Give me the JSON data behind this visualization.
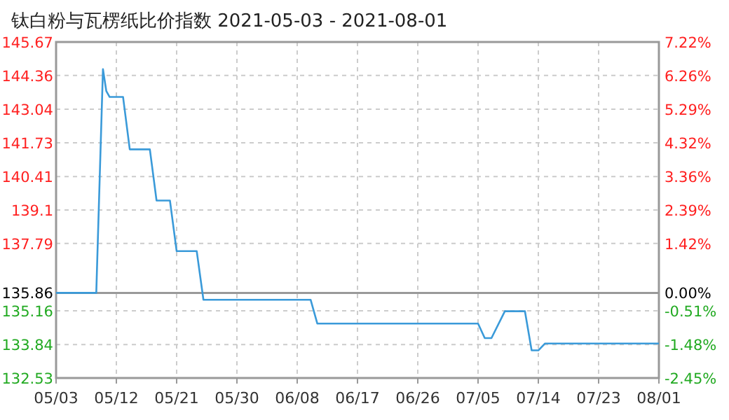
{
  "chart_data": {
    "type": "line",
    "title": "钛白粉与瓦楞纸比价指数 2021-05-03 - 2021-08-01",
    "x": [
      "2021-05-03",
      "2021-05-09",
      "2021-05-10",
      "2021-05-10T12:00",
      "2021-05-11",
      "2021-05-13",
      "2021-05-14",
      "2021-05-17",
      "2021-05-18",
      "2021-05-20",
      "2021-05-21",
      "2021-05-24",
      "2021-05-25",
      "2021-06-10",
      "2021-06-11",
      "2021-07-05",
      "2021-07-06",
      "2021-07-07",
      "2021-07-09",
      "2021-07-12",
      "2021-07-13",
      "2021-07-14",
      "2021-07-15",
      "2021-08-01"
    ],
    "series": [
      {
        "color": "#3a9ad9",
        "values": [
          135.86,
          135.86,
          144.61,
          143.75,
          143.52,
          143.52,
          141.47,
          141.47,
          139.47,
          139.47,
          137.49,
          137.49,
          135.59,
          135.59,
          134.66,
          134.66,
          134.09,
          134.09,
          135.14,
          135.14,
          133.61,
          133.61,
          133.88,
          133.88
        ]
      }
    ],
    "xlim": [
      "2021-05-03",
      "2021-08-01"
    ],
    "xticks": [
      {
        "value": "2021-05-03",
        "label": "05/03"
      },
      {
        "value": "2021-05-12",
        "label": "05/12"
      },
      {
        "value": "2021-05-21",
        "label": "05/21"
      },
      {
        "value": "2021-05-30",
        "label": "05/30"
      },
      {
        "value": "2021-06-08",
        "label": "06/08"
      },
      {
        "value": "2021-06-17",
        "label": "06/17"
      },
      {
        "value": "2021-06-26",
        "label": "06/26"
      },
      {
        "value": "2021-07-05",
        "label": "07/05"
      },
      {
        "value": "2021-07-14",
        "label": "07/14"
      },
      {
        "value": "2021-07-23",
        "label": "07/23"
      },
      {
        "value": "2021-08-01",
        "label": "08/01"
      }
    ],
    "ylim": [
      132.53,
      145.67
    ],
    "yticks": [
      132.53,
      133.84,
      135.16,
      135.86,
      137.79,
      139.1,
      140.41,
      141.73,
      143.04,
      144.36,
      145.67
    ],
    "y2lim": [
      -2.45,
      7.22
    ],
    "y2ticks": [
      {
        "value": -2.45,
        "label": "-2.45%"
      },
      {
        "value": -1.48,
        "label": "-1.48%"
      },
      {
        "value": -0.51,
        "label": "-0.51%"
      },
      {
        "value": 0,
        "label": "0.00%"
      },
      {
        "value": 1.42,
        "label": "1.42%"
      },
      {
        "value": 2.39,
        "label": "2.39%"
      },
      {
        "value": 3.36,
        "label": "3.36%"
      },
      {
        "value": 4.32,
        "label": "4.32%"
      },
      {
        "value": 5.29,
        "label": "5.29%"
      },
      {
        "value": 6.26,
        "label": "6.26%"
      },
      {
        "value": 7.22,
        "label": "7.22%"
      }
    ],
    "ref_lines": [
      {
        "axis": "y2",
        "value": 0,
        "color": "#999999"
      }
    ],
    "grid": true,
    "line_style": "solid",
    "marker": "none"
  }
}
